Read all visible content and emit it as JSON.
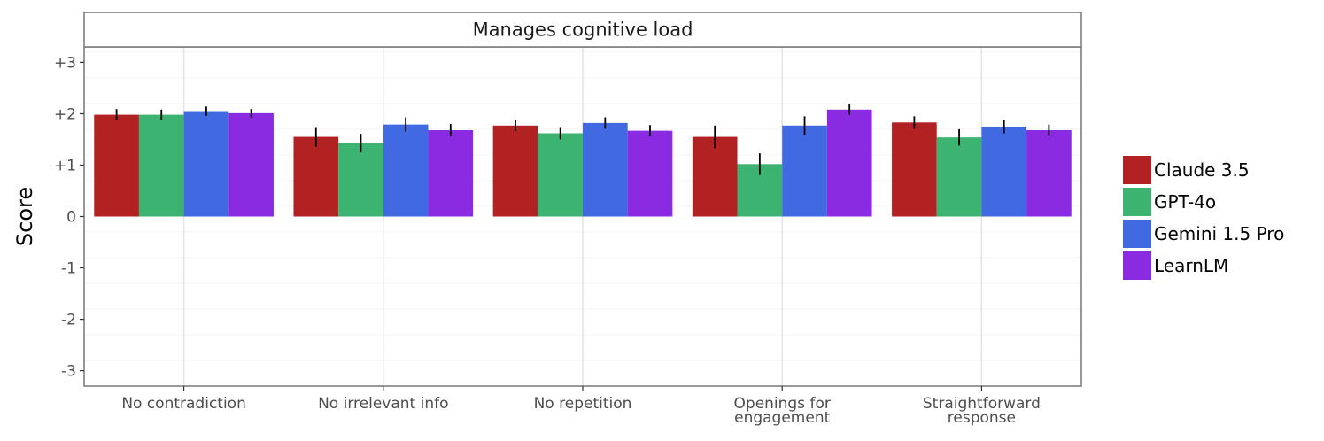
{
  "chart_data": {
    "type": "bar",
    "panel_title": "Manages cognitive load",
    "ylabel": "Score",
    "xlabel": "",
    "ylim": [
      -3.3,
      3.3
    ],
    "yticks": [
      3,
      2,
      1,
      0,
      -1,
      -2,
      -3
    ],
    "ytick_labels": [
      "+3",
      "+2",
      "+1",
      "0",
      "-1",
      "-2",
      "-3"
    ],
    "grid": true,
    "legend_position": "right",
    "categories": [
      [
        "No contradiction"
      ],
      [
        "No irrelevant info"
      ],
      [
        "No repetition"
      ],
      [
        "Openings for",
        "engagement"
      ],
      [
        "Straightforward",
        "response"
      ]
    ],
    "series": [
      {
        "name": "Claude 3.5",
        "color": "#b22222",
        "values": [
          1.98,
          1.55,
          1.77,
          1.55,
          1.83
        ],
        "err": [
          0.11,
          0.19,
          0.11,
          0.22,
          0.12
        ]
      },
      {
        "name": "GPT-4o",
        "color": "#3cb371",
        "values": [
          1.98,
          1.43,
          1.62,
          1.02,
          1.54
        ],
        "err": [
          0.1,
          0.18,
          0.12,
          0.21,
          0.16
        ]
      },
      {
        "name": "Gemini 1.5 Pro",
        "color": "#4169e1",
        "values": [
          2.05,
          1.79,
          1.82,
          1.77,
          1.75
        ],
        "err": [
          0.09,
          0.14,
          0.11,
          0.18,
          0.13
        ]
      },
      {
        "name": "LearnLM",
        "color": "#8a2be2",
        "values": [
          2.01,
          1.68,
          1.67,
          2.08,
          1.68
        ],
        "err": [
          0.08,
          0.12,
          0.11,
          0.1,
          0.11
        ]
      }
    ]
  }
}
